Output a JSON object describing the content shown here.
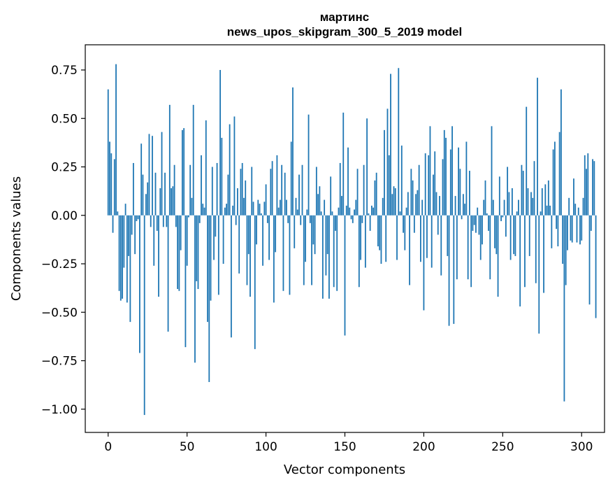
{
  "chart_data": {
    "type": "bar",
    "title_line1": "мартинс",
    "title_line2": "news_upos_skipgram_300_5_2019 model",
    "xlabel": "Vector components",
    "ylabel": "Components values",
    "xlim": [
      -14.5,
      314.5
    ],
    "ylim": [
      -1.12,
      0.88
    ],
    "xticks": [
      0,
      50,
      100,
      150,
      200,
      250,
      300
    ],
    "xtick_labels": [
      "0",
      "50",
      "100",
      "150",
      "200",
      "250",
      "300"
    ],
    "yticks": [
      -1.0,
      -0.75,
      -0.5,
      -0.25,
      0.0,
      0.25,
      0.5,
      0.75
    ],
    "ytick_labels": [
      "−1.00",
      "−0.75",
      "−0.50",
      "−0.25",
      "0.00",
      "0.25",
      "0.50",
      "0.75"
    ],
    "bar_color": "#1f77b4",
    "values": [
      0.65,
      0.38,
      0.32,
      -0.09,
      0.29,
      0.78,
      0.02,
      -0.39,
      -0.44,
      -0.43,
      -0.27,
      0.06,
      -0.45,
      -0.21,
      -0.55,
      -0.1,
      0.27,
      -0.2,
      -0.03,
      -0.02,
      -0.71,
      0.37,
      0.21,
      -1.03,
      0.11,
      0.17,
      0.42,
      -0.06,
      0.41,
      -0.26,
      0.22,
      -0.08,
      -0.42,
      0.14,
      0.43,
      -0.06,
      0.22,
      -0.06,
      -0.6,
      0.57,
      0.14,
      0.15,
      0.26,
      -0.06,
      -0.38,
      -0.39,
      -0.18,
      0.44,
      0.45,
      -0.68,
      -0.26,
      -0.01,
      0.26,
      0.09,
      0.57,
      -0.76,
      -0.34,
      -0.38,
      -0.04,
      0.31,
      0.06,
      0.04,
      0.49,
      -0.55,
      -0.86,
      -0.44,
      0.25,
      -0.23,
      -0.11,
      0.27,
      -0.41,
      0.75,
      0.4,
      -0.25,
      0.04,
      0.06,
      0.21,
      0.47,
      -0.63,
      0.05,
      0.51,
      -0.05,
      0.14,
      -0.3,
      0.24,
      0.27,
      0.09,
      0.18,
      -0.36,
      -0.2,
      -0.42,
      0.25,
      0.07,
      -0.69,
      -0.15,
      0.08,
      0.06,
      0.01,
      -0.26,
      0.07,
      0.16,
      -0.04,
      -0.23,
      0.24,
      0.28,
      -0.45,
      -0.19,
      0.31,
      0.04,
      0.08,
      0.26,
      -0.39,
      0.22,
      0.08,
      -0.04,
      -0.41,
      0.38,
      0.66,
      -0.17,
      0.09,
      0.03,
      0.21,
      -0.05,
      0.26,
      -0.36,
      -0.24,
      0.03,
      0.52,
      -0.04,
      -0.36,
      -0.15,
      -0.2,
      0.25,
      0.11,
      0.15,
      0.02,
      -0.43,
      0.08,
      -0.31,
      -0.2,
      -0.43,
      0.2,
      0.02,
      -0.37,
      -0.08,
      -0.39,
      0.04,
      0.27,
      0.1,
      0.53,
      -0.62,
      0.05,
      0.35,
      0.04,
      -0.02,
      -0.04,
      0.03,
      0.08,
      0.24,
      -0.37,
      -0.23,
      -0.04,
      0.26,
      -0.27,
      0.5,
      0.01,
      -0.08,
      0.05,
      0.04,
      0.18,
      0.22,
      -0.16,
      -0.18,
      -0.25,
      0.09,
      0.44,
      -0.24,
      0.55,
      0.31,
      0.73,
      0.11,
      0.15,
      0.14,
      -0.23,
      0.76,
      0.02,
      0.36,
      -0.09,
      -0.18,
      0.04,
      0.12,
      -0.36,
      0.24,
      0.18,
      -0.09,
      0.11,
      0.13,
      0.26,
      -0.24,
      0.08,
      -0.49,
      0.32,
      -0.22,
      0.31,
      0.46,
      -0.27,
      0.21,
      0.33,
      0.12,
      -0.1,
      0.1,
      -0.31,
      0.29,
      0.44,
      0.4,
      -0.21,
      -0.57,
      0.34,
      0.46,
      -0.56,
      0.1,
      -0.33,
      0.35,
      0.24,
      -0.02,
      0.11,
      0.06,
      0.38,
      -0.33,
      0.23,
      -0.37,
      -0.08,
      -0.05,
      -0.09,
      0.04,
      -0.1,
      -0.23,
      -0.15,
      0.08,
      0.18,
      0.01,
      -0.08,
      -0.33,
      0.46,
      0.08,
      -0.17,
      -0.2,
      -0.42,
      0.2,
      -0.03,
      -0.01,
      0.08,
      -0.11,
      0.25,
      0.12,
      -0.23,
      0.14,
      -0.2,
      -0.21,
      0.02,
      0.08,
      -0.47,
      0.26,
      0.23,
      -0.37,
      0.56,
      0.14,
      -0.21,
      0.12,
      0.09,
      0.28,
      -0.35,
      0.71,
      -0.61,
      0.02,
      0.14,
      -0.4,
      0.16,
      0.05,
      0.18,
      0.05,
      -0.17,
      0.34,
      0.38,
      -0.07,
      -0.16,
      0.43,
      0.65,
      -0.25,
      -0.96,
      -0.36,
      -0.18,
      0.09,
      -0.13,
      -0.14,
      0.19,
      0.06,
      -0.14,
      0.04,
      -0.15,
      -0.13,
      0.09,
      0.31,
      0.24,
      0.32,
      -0.46,
      -0.08,
      0.29,
      0.28,
      -0.53
    ]
  }
}
